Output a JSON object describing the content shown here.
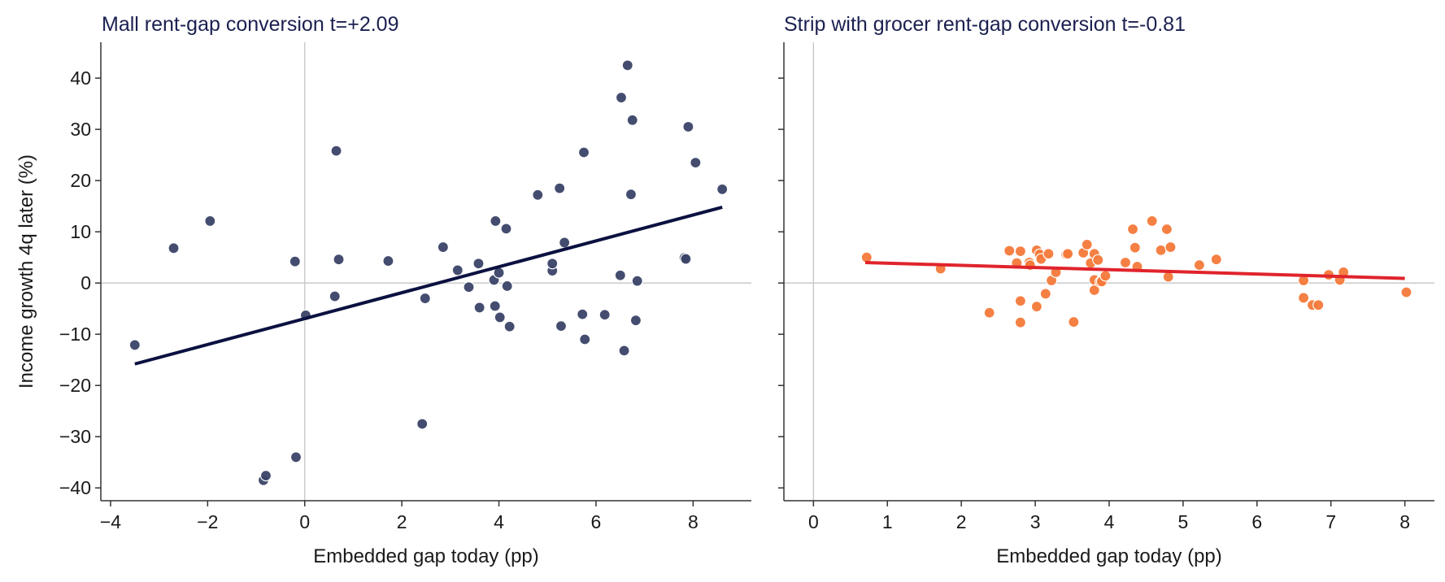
{
  "colors": {
    "title": "#1b2050",
    "mall_point": "#3a4367",
    "mall_fit": "#0b1140",
    "grocer_point": "#f4793a",
    "grocer_fit": "#e0242c",
    "zero_line": "#c6c6c6",
    "axis": "#333333"
  },
  "chart_data": [
    {
      "type": "scatter",
      "title": "Mall   rent-gap conversion t=+2.09",
      "xlabel": "Embedded gap today (pp)",
      "ylabel": "Income growth 4q later (%)",
      "xlim": [
        -4.2,
        9.2
      ],
      "ylim": [
        -42.5,
        47
      ],
      "xticks": [
        -4,
        -2,
        0,
        2,
        4,
        6,
        8
      ],
      "xtick_labels": [
        "−4",
        "−2",
        "0",
        "2",
        "4",
        "6",
        "8"
      ],
      "yticks": [
        -40,
        -30,
        -20,
        -10,
        0,
        10,
        20,
        30,
        40
      ],
      "ytick_labels": [
        "−40",
        "−30",
        "−20",
        "−10",
        "0",
        "10",
        "20",
        "30",
        "40"
      ],
      "fit_line": {
        "x": [
          -3.5,
          8.6
        ],
        "y": [
          -15.8,
          14.8
        ]
      },
      "points": [
        [
          -3.5,
          -12.1
        ],
        [
          -2.7,
          6.8
        ],
        [
          -1.95,
          12.1
        ],
        [
          -0.85,
          -38.5
        ],
        [
          -0.8,
          -37.6
        ],
        [
          -0.2,
          4.2
        ],
        [
          -0.18,
          -34.0
        ],
        [
          0.02,
          -6.3
        ],
        [
          0.62,
          -2.6
        ],
        [
          0.65,
          25.8
        ],
        [
          0.7,
          4.6
        ],
        [
          1.72,
          4.3
        ],
        [
          2.42,
          -27.5
        ],
        [
          2.48,
          -3.0
        ],
        [
          2.85,
          7.0
        ],
        [
          3.15,
          2.5
        ],
        [
          3.38,
          -0.8
        ],
        [
          3.58,
          3.8
        ],
        [
          3.6,
          -4.8
        ],
        [
          3.9,
          0.6
        ],
        [
          3.92,
          -4.5
        ],
        [
          3.93,
          12.1
        ],
        [
          4.0,
          2.0
        ],
        [
          4.02,
          -6.7
        ],
        [
          4.15,
          10.6
        ],
        [
          4.17,
          -0.6
        ],
        [
          4.22,
          -8.5
        ],
        [
          4.8,
          17.2
        ],
        [
          5.1,
          2.4
        ],
        [
          5.1,
          3.8
        ],
        [
          5.25,
          18.5
        ],
        [
          5.28,
          -8.4
        ],
        [
          5.35,
          7.9
        ],
        [
          5.72,
          -6.1
        ],
        [
          5.75,
          25.5
        ],
        [
          5.77,
          -11.0
        ],
        [
          6.18,
          -6.2
        ],
        [
          6.5,
          1.5
        ],
        [
          6.52,
          36.2
        ],
        [
          6.58,
          -13.2
        ],
        [
          6.65,
          42.5
        ],
        [
          6.72,
          17.3
        ],
        [
          6.75,
          31.8
        ],
        [
          6.82,
          -7.3
        ],
        [
          6.85,
          0.4
        ],
        [
          7.82,
          4.9
        ],
        [
          7.85,
          4.7
        ],
        [
          7.9,
          30.5
        ],
        [
          8.05,
          23.5
        ],
        [
          8.6,
          18.3
        ]
      ]
    },
    {
      "type": "scatter",
      "title": "Strip with grocer   rent-gap conversion t=-0.81",
      "xlabel": "Embedded gap today (pp)",
      "xlim": [
        -0.4,
        8.4
      ],
      "ylim": [
        -42.5,
        47
      ],
      "xticks": [
        0,
        1,
        2,
        3,
        4,
        5,
        6,
        7,
        8
      ],
      "xtick_labels": [
        "0",
        "1",
        "2",
        "3",
        "4",
        "5",
        "6",
        "7",
        "8"
      ],
      "yticks": [
        -40,
        -30,
        -20,
        -10,
        0,
        10,
        20,
        30,
        40
      ],
      "fit_line": {
        "x": [
          0.7,
          8.0
        ],
        "y": [
          4.0,
          0.9
        ]
      },
      "points": [
        [
          0.72,
          5.0
        ],
        [
          1.72,
          2.8
        ],
        [
          2.38,
          -5.8
        ],
        [
          2.65,
          6.3
        ],
        [
          2.75,
          3.9
        ],
        [
          2.8,
          6.2
        ],
        [
          2.8,
          -3.5
        ],
        [
          2.8,
          -7.7
        ],
        [
          2.92,
          4.0
        ],
        [
          2.93,
          3.5
        ],
        [
          3.02,
          6.4
        ],
        [
          3.02,
          -4.6
        ],
        [
          3.06,
          5.6
        ],
        [
          3.08,
          4.7
        ],
        [
          3.14,
          -2.1
        ],
        [
          3.18,
          5.7
        ],
        [
          3.22,
          0.5
        ],
        [
          3.28,
          2.1
        ],
        [
          3.42,
          5.6
        ],
        [
          3.44,
          5.7
        ],
        [
          3.52,
          -7.6
        ],
        [
          3.65,
          5.9
        ],
        [
          3.7,
          7.5
        ],
        [
          3.75,
          3.9
        ],
        [
          3.8,
          5.7
        ],
        [
          3.8,
          0.6
        ],
        [
          3.8,
          -1.4
        ],
        [
          3.85,
          4.5
        ],
        [
          3.88,
          0.2
        ],
        [
          3.9,
          0.3
        ],
        [
          3.95,
          1.4
        ],
        [
          4.22,
          4.0
        ],
        [
          4.32,
          10.5
        ],
        [
          4.35,
          6.9
        ],
        [
          4.38,
          3.2
        ],
        [
          4.58,
          12.1
        ],
        [
          4.7,
          6.4
        ],
        [
          4.78,
          10.5
        ],
        [
          4.8,
          1.2
        ],
        [
          4.83,
          7.0
        ],
        [
          5.22,
          3.5
        ],
        [
          5.45,
          4.6
        ],
        [
          6.63,
          0.5
        ],
        [
          6.63,
          -2.9
        ],
        [
          6.75,
          -4.3
        ],
        [
          6.83,
          -4.3
        ],
        [
          6.97,
          1.6
        ],
        [
          7.12,
          0.6
        ],
        [
          7.17,
          2.1
        ],
        [
          8.02,
          -1.8
        ]
      ]
    }
  ]
}
